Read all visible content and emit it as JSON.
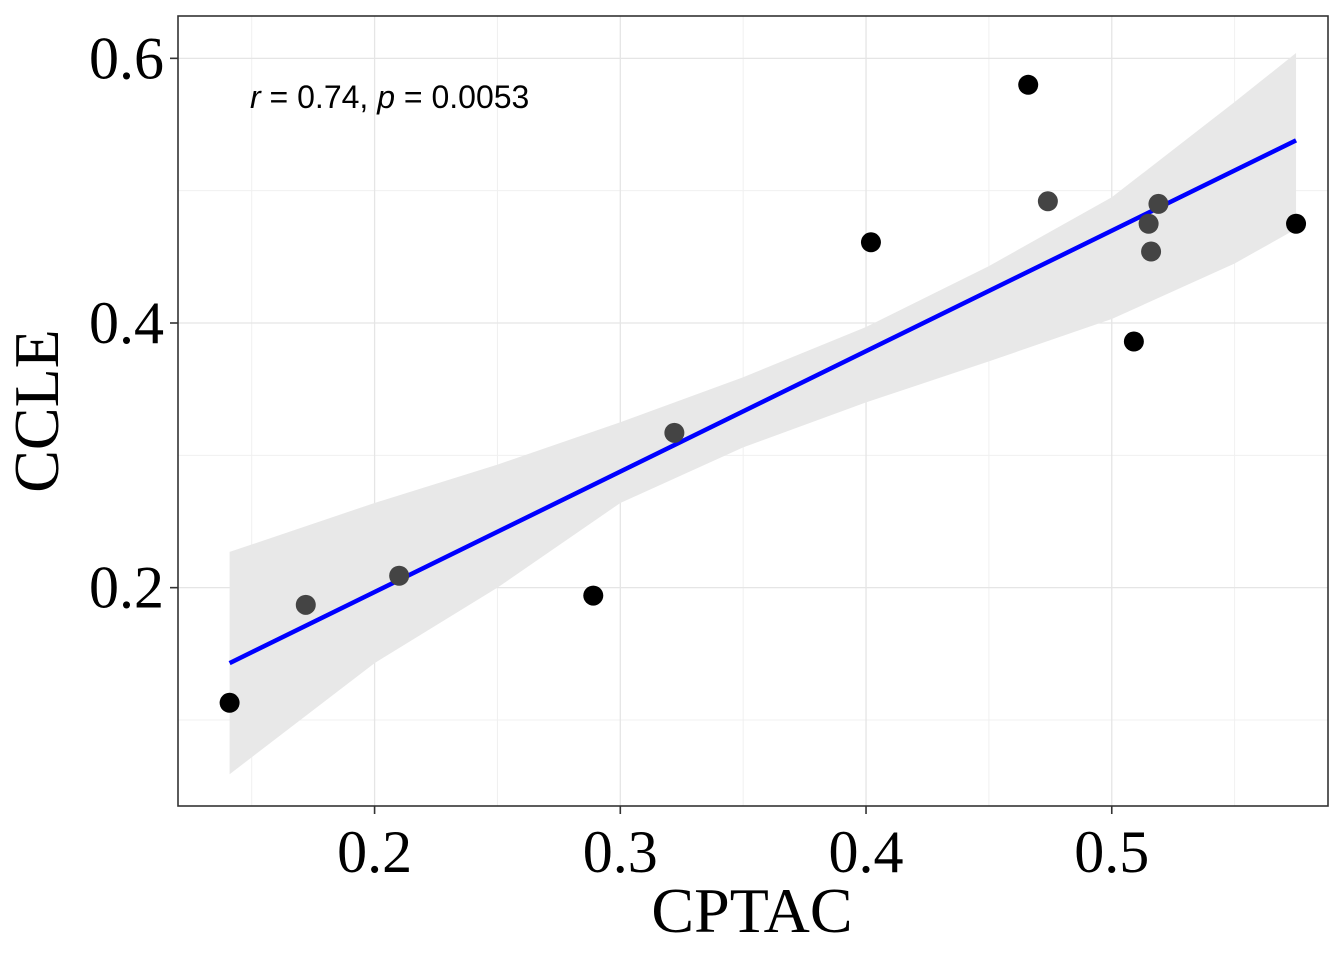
{
  "chart_data": {
    "type": "scatter",
    "title": "",
    "xlabel": "CPTAC",
    "ylabel": "CCLE",
    "xlim": [
      0.12,
      0.588
    ],
    "ylim": [
      0.035,
      0.632
    ],
    "x_ticks": [
      0.2,
      0.3,
      0.4,
      0.5
    ],
    "x_tick_labels": [
      "0.2",
      "0.3",
      "0.4",
      "0.5"
    ],
    "y_ticks": [
      0.2,
      0.4,
      0.6
    ],
    "y_tick_labels": [
      "0.2",
      "0.4",
      "0.6"
    ],
    "grid": true,
    "points": [
      {
        "x": 0.141,
        "y": 0.113,
        "color": "#000000"
      },
      {
        "x": 0.172,
        "y": 0.187,
        "color": "#444444"
      },
      {
        "x": 0.21,
        "y": 0.209,
        "color": "#444444"
      },
      {
        "x": 0.289,
        "y": 0.194,
        "color": "#000000"
      },
      {
        "x": 0.322,
        "y": 0.317,
        "color": "#444444"
      },
      {
        "x": 0.402,
        "y": 0.461,
        "color": "#000000"
      },
      {
        "x": 0.466,
        "y": 0.58,
        "color": "#000000"
      },
      {
        "x": 0.474,
        "y": 0.492,
        "color": "#444444"
      },
      {
        "x": 0.509,
        "y": 0.386,
        "color": "#000000"
      },
      {
        "x": 0.515,
        "y": 0.475,
        "color": "#444444"
      },
      {
        "x": 0.516,
        "y": 0.454,
        "color": "#444444"
      },
      {
        "x": 0.519,
        "y": 0.49,
        "color": "#444444"
      },
      {
        "x": 0.575,
        "y": 0.475,
        "color": "#000000"
      }
    ],
    "regression": {
      "x": [
        0.141,
        0.575
      ],
      "y": [
        0.143,
        0.538
      ],
      "color": "#0000ff"
    },
    "confidence_band": {
      "x": [
        0.141,
        0.2,
        0.25,
        0.3,
        0.35,
        0.4,
        0.45,
        0.5,
        0.55,
        0.575
      ],
      "upper": [
        0.227,
        0.264,
        0.293,
        0.325,
        0.359,
        0.397,
        0.443,
        0.495,
        0.567,
        0.604
      ],
      "lower": [
        0.059,
        0.143,
        0.2,
        0.264,
        0.306,
        0.34,
        0.371,
        0.403,
        0.445,
        0.471
      ],
      "color": "#e8e8e8"
    },
    "annotation": {
      "r_symbol": "r",
      "r_text": " = 0.74, ",
      "p_symbol": "p",
      "p_text": " = 0.0053"
    }
  }
}
